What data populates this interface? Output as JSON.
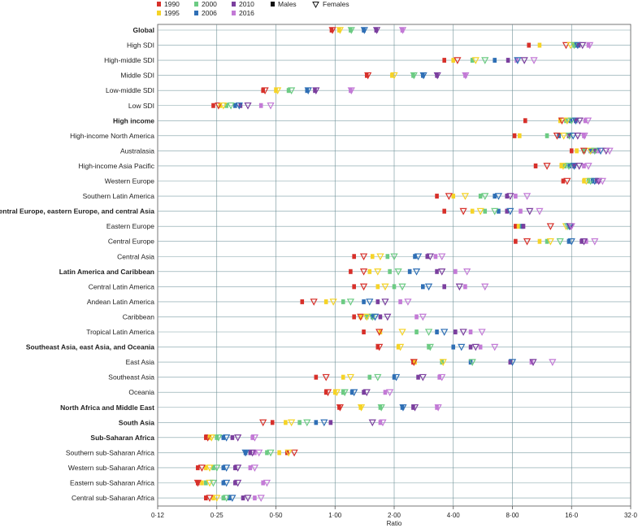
{
  "chart_data": {
    "type": "scatter",
    "xlabel": "Ratio",
    "x_scale": "log2",
    "xlim": [
      0.125,
      32
    ],
    "x_ticks": [
      0.125,
      0.25,
      0.5,
      1,
      2,
      4,
      8,
      16,
      32
    ],
    "x_tick_labels": [
      "0·12",
      "0·25",
      "0·50",
      "1·00",
      "2·00",
      "4·00",
      "8·00",
      "16·0",
      "32·0"
    ],
    "legend": {
      "years": [
        {
          "label": "1990",
          "color": "#d7302a"
        },
        {
          "label": "1995",
          "color": "#f5d327"
        },
        {
          "label": "2000",
          "color": "#6ccb83"
        },
        {
          "label": "2006",
          "color": "#2f6fb5"
        },
        {
          "label": "2010",
          "color": "#7b3f9e"
        },
        {
          "label": "2016",
          "color": "#c37ad6"
        }
      ],
      "males_label": "Males",
      "females_label": "Females"
    },
    "series_years": [
      "1990",
      "1995",
      "2000",
      "2006",
      "2010",
      "2016"
    ],
    "rows": [
      {
        "label": "Global",
        "bold": true,
        "males": [
          0.96,
          1.05,
          1.2,
          1.4,
          1.62,
          2.2
        ],
        "females": [
          0.97,
          1.06,
          1.21,
          1.41,
          1.63,
          2.21
        ]
      },
      {
        "label": "High SDI",
        "bold": false,
        "males": [
          9.7,
          11.0,
          16.5,
          17.0,
          17.4,
          19.5
        ],
        "females": [
          15.0,
          15.8,
          16.5,
          17.2,
          18.2,
          19.8
        ]
      },
      {
        "label": "High-middle SDI",
        "bold": false,
        "males": [
          3.6,
          4.0,
          5.0,
          6.5,
          7.6,
          8.4
        ],
        "females": [
          4.2,
          5.2,
          5.8,
          8.5,
          9.2,
          10.3
        ]
      },
      {
        "label": "Middle SDI",
        "bold": false,
        "males": [
          1.45,
          1.95,
          2.5,
          2.8,
          3.3,
          4.6
        ],
        "females": [
          1.47,
          2.0,
          2.52,
          2.82,
          3.32,
          4.62
        ]
      },
      {
        "label": "Low-middle SDI",
        "bold": false,
        "males": [
          0.43,
          0.5,
          0.58,
          0.72,
          0.79,
          1.2
        ],
        "females": [
          0.44,
          0.51,
          0.6,
          0.73,
          0.8,
          1.21
        ]
      },
      {
        "label": "Low SDI",
        "bold": false,
        "males": [
          0.24,
          0.26,
          0.28,
          0.31,
          0.33,
          0.42
        ],
        "females": [
          0.255,
          0.27,
          0.295,
          0.325,
          0.36,
          0.47
        ]
      },
      {
        "label": "High income",
        "bold": true,
        "males": [
          9.3,
          14.0,
          15.0,
          15.8,
          16.8,
          18.8
        ],
        "females": [
          14.3,
          15.2,
          16.0,
          16.8,
          17.6,
          19.4
        ]
      },
      {
        "label": "High-income North America",
        "bold": false,
        "males": [
          8.2,
          8.7,
          12.0,
          13.8,
          15.5,
          18.5
        ],
        "females": [
          13.5,
          14.6,
          15.6,
          16.3,
          17.2,
          18.6
        ]
      },
      {
        "label": "Australasia",
        "bold": false,
        "males": [
          16.0,
          17.0,
          18.5,
          20.0,
          21.0,
          22.0
        ],
        "females": [
          18.5,
          20.0,
          21.0,
          22.5,
          24.0,
          25.0
        ]
      },
      {
        "label": "High-income Asia Pacific",
        "bold": false,
        "males": [
          10.5,
          14.2,
          14.8,
          15.6,
          16.5,
          18.5
        ],
        "females": [
          12.0,
          14.5,
          15.5,
          16.5,
          17.5,
          19.5
        ]
      },
      {
        "label": "Western Europe",
        "bold": false,
        "males": [
          14.5,
          18.5,
          19.5,
          20.5,
          21.5,
          22.0
        ],
        "females": [
          15.2,
          19.0,
          20.0,
          21.0,
          22.0,
          23.0
        ]
      },
      {
        "label": "Southern Latin America",
        "bold": false,
        "males": [
          3.3,
          4.0,
          5.5,
          6.5,
          7.5,
          8.3
        ],
        "females": [
          3.8,
          4.6,
          5.8,
          6.8,
          7.8,
          9.5
        ]
      },
      {
        "label": "Central Europe, eastern Europe, and central Asia",
        "bold": true,
        "males": [
          3.6,
          5.0,
          5.8,
          6.8,
          7.5,
          8.8
        ],
        "females": [
          4.5,
          5.5,
          6.5,
          7.8,
          9.8,
          11.0
        ]
      },
      {
        "label": "Eastern Europe",
        "bold": false,
        "males": [
          8.3,
          8.6,
          8.9,
          9.0,
          9.1,
          15.5
        ],
        "females": [
          12.5,
          15.0,
          15.3,
          15.6,
          15.8,
          16.0
        ]
      },
      {
        "label": "Central Europe",
        "bold": false,
        "males": [
          8.3,
          11.0,
          12.0,
          15.5,
          18.0,
          19.0
        ],
        "females": [
          9.5,
          12.5,
          14.0,
          16.0,
          18.5,
          21.0
        ]
      },
      {
        "label": "Central Asia",
        "bold": false,
        "males": [
          1.25,
          1.55,
          1.85,
          2.55,
          2.95,
          3.25
        ],
        "females": [
          1.4,
          1.7,
          2.0,
          2.65,
          3.05,
          3.5
        ]
      },
      {
        "label": "Latin America and Caribbean",
        "bold": true,
        "males": [
          1.2,
          1.5,
          1.9,
          2.4,
          3.3,
          4.1
        ],
        "females": [
          1.4,
          1.65,
          2.1,
          2.6,
          3.5,
          4.7
        ]
      },
      {
        "label": "Central Latin America",
        "bold": false,
        "males": [
          1.25,
          1.65,
          2.0,
          2.8,
          3.6,
          4.6
        ],
        "females": [
          1.4,
          1.8,
          2.2,
          3.0,
          4.3,
          5.8
        ]
      },
      {
        "label": "Andean Latin America",
        "bold": false,
        "males": [
          0.68,
          0.9,
          1.1,
          1.4,
          1.65,
          2.15
        ],
        "females": [
          0.78,
          0.98,
          1.2,
          1.5,
          1.8,
          2.35
        ]
      },
      {
        "label": "Caribbean",
        "bold": false,
        "males": [
          1.25,
          1.35,
          1.45,
          1.55,
          1.7,
          2.6
        ],
        "females": [
          1.35,
          1.45,
          1.55,
          1.6,
          1.85,
          2.8
        ]
      },
      {
        "label": "Tropical Latin America",
        "bold": false,
        "males": [
          1.4,
          1.7,
          2.6,
          3.3,
          4.1,
          4.9
        ],
        "females": [
          1.68,
          2.2,
          3.0,
          3.6,
          4.5,
          5.6
        ]
      },
      {
        "label": "Southeast Asia, east Asia, and Oceania",
        "bold": true,
        "males": [
          1.65,
          2.1,
          3.0,
          4.0,
          4.9,
          5.5
        ],
        "females": [
          1.68,
          2.15,
          3.05,
          4.4,
          5.2,
          6.5
        ]
      },
      {
        "label": "East Asia",
        "bold": false,
        "males": [
          2.5,
          2.55,
          3.5,
          4.9,
          7.8,
          10.0
        ],
        "females": [
          2.52,
          3.55,
          5.0,
          8.0,
          10.2,
          12.8
        ]
      },
      {
        "label": "Southeast Asia",
        "bold": false,
        "males": [
          0.8,
          1.1,
          1.5,
          2.0,
          2.65,
          3.4
        ],
        "females": [
          0.9,
          1.2,
          1.65,
          2.05,
          2.8,
          3.5
        ]
      },
      {
        "label": "Oceania",
        "bold": false,
        "males": [
          0.9,
          1.0,
          1.1,
          1.22,
          1.4,
          1.8
        ],
        "females": [
          0.92,
          1.02,
          1.12,
          1.25,
          1.45,
          1.9
        ]
      },
      {
        "label": "North Africa and Middle East",
        "bold": true,
        "males": [
          1.05,
          1.35,
          1.7,
          2.2,
          2.5,
          3.3
        ],
        "females": [
          1.06,
          1.36,
          1.72,
          2.22,
          2.55,
          3.35
        ]
      },
      {
        "label": "South Asia",
        "bold": true,
        "males": [
          0.48,
          0.56,
          0.66,
          0.8,
          0.95,
          1.7
        ],
        "females": [
          0.43,
          0.6,
          0.72,
          0.88,
          1.55,
          1.75
        ]
      },
      {
        "label": "Sub-Saharan Africa",
        "bold": true,
        "males": [
          0.22,
          0.23,
          0.25,
          0.27,
          0.3,
          0.38
        ],
        "females": [
          0.225,
          0.235,
          0.255,
          0.28,
          0.32,
          0.39
        ]
      },
      {
        "label": "Southern sub-Saharan Africa",
        "bold": false,
        "males": [
          0.57,
          0.52,
          0.45,
          0.35,
          0.37,
          0.39
        ],
        "females": [
          0.62,
          0.58,
          0.47,
          0.35,
          0.38,
          0.41
        ]
      },
      {
        "label": "Western sub-Saharan Africa",
        "bold": false,
        "males": [
          0.2,
          0.22,
          0.24,
          0.27,
          0.31,
          0.37
        ],
        "females": [
          0.21,
          0.23,
          0.25,
          0.28,
          0.32,
          0.39
        ]
      },
      {
        "label": "Eastern sub-Saharan Africa",
        "bold": false,
        "males": [
          0.2,
          0.21,
          0.22,
          0.27,
          0.31,
          0.43
        ],
        "females": [
          0.2,
          0.23,
          0.24,
          0.28,
          0.32,
          0.45
        ]
      },
      {
        "label": "Central sub-Saharan Africa",
        "bold": false,
        "males": [
          0.22,
          0.24,
          0.27,
          0.29,
          0.34,
          0.39
        ],
        "females": [
          0.23,
          0.25,
          0.28,
          0.3,
          0.36,
          0.42
        ]
      }
    ]
  }
}
